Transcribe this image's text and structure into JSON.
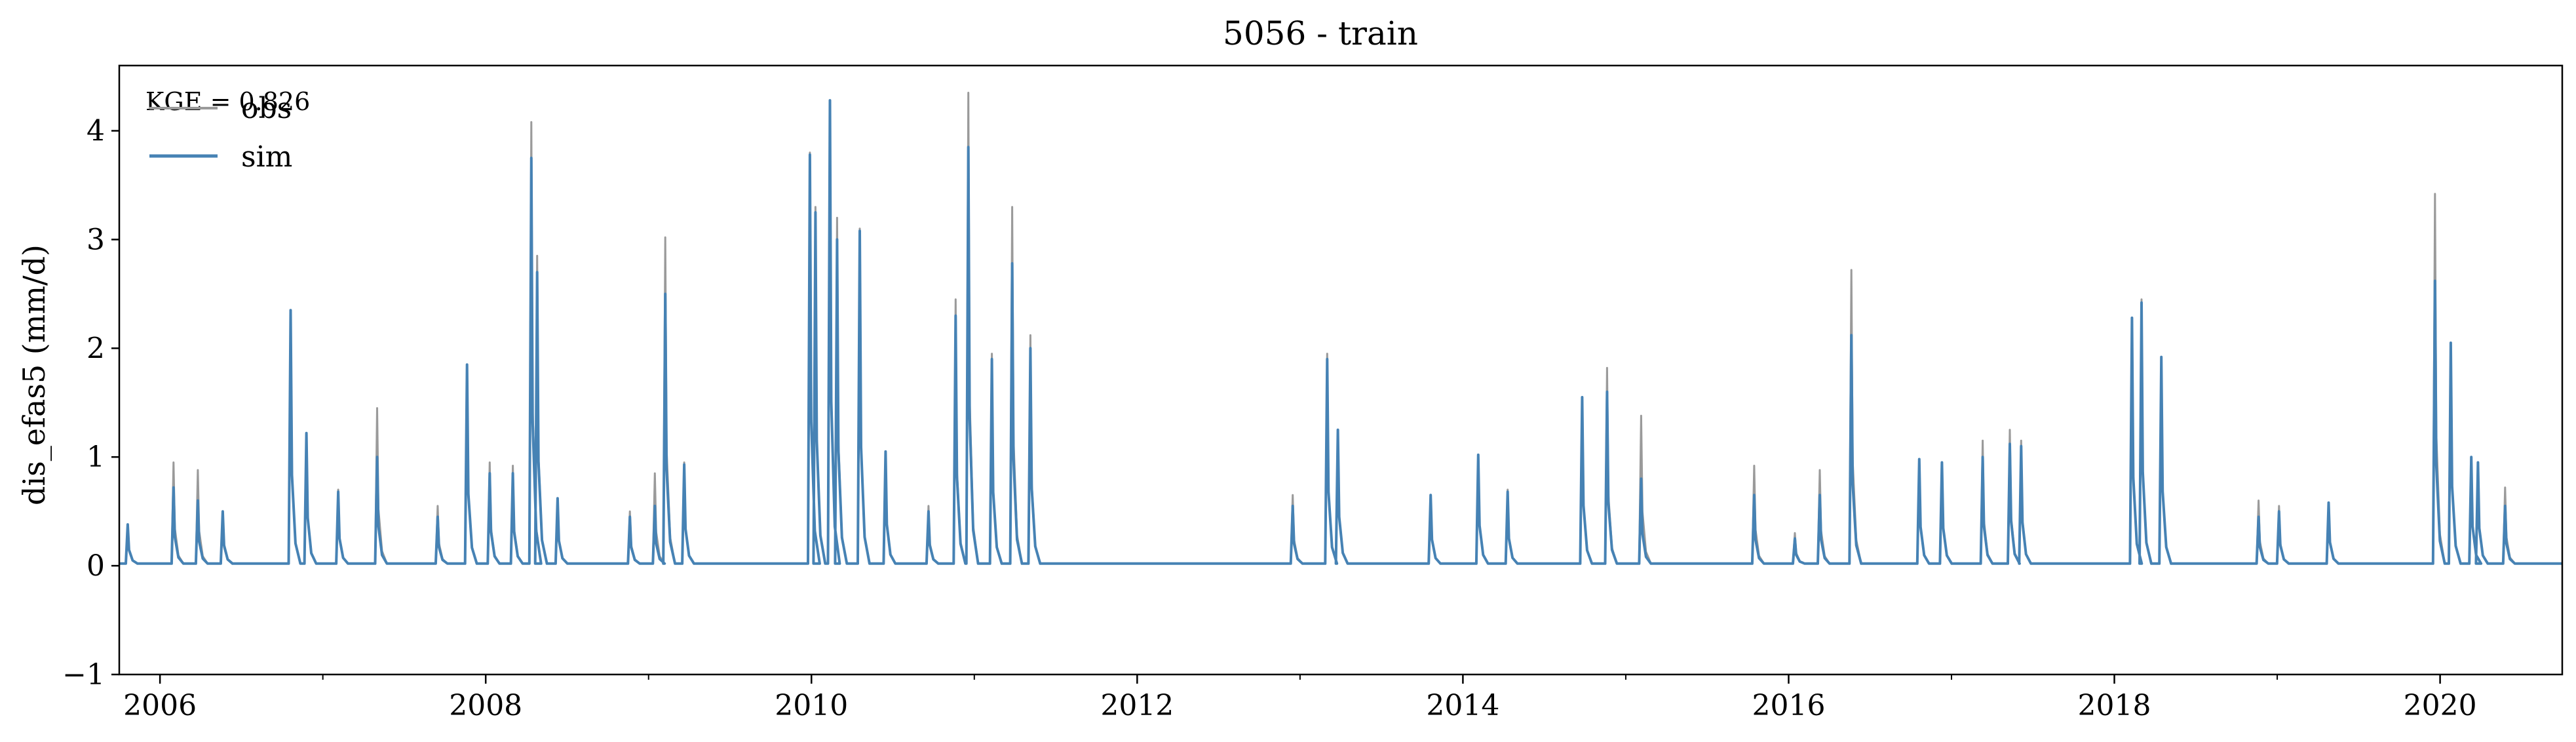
{
  "chart_data": {
    "type": "line",
    "title": "5056 - train",
    "xlabel": "",
    "ylabel": "dis_efas5 (mm/d)",
    "xlim": [
      "2005-10",
      "2020-10"
    ],
    "ylim": [
      -1,
      4.6
    ],
    "x_ticks": [
      "2006",
      "2008",
      "2010",
      "2012",
      "2014",
      "2016",
      "2018",
      "2020"
    ],
    "y_ticks": [
      "−1",
      "0",
      "1",
      "2",
      "3",
      "4"
    ],
    "grid": false,
    "legend_position": "top-left",
    "annotation": "KGE = 0.826",
    "baseline": 0.02,
    "series": [
      {
        "name": "obs",
        "color": "#9a9a9a",
        "peaks": [
          [
            "2005-10-20",
            0.35
          ],
          [
            "2006-02-01",
            0.95
          ],
          [
            "2006-03-25",
            0.88
          ],
          [
            "2006-05-20",
            0.45
          ],
          [
            "2006-10-20",
            2.3
          ],
          [
            "2006-11-25",
            1.2
          ],
          [
            "2007-02-05",
            0.7
          ],
          [
            "2007-05-01",
            1.45
          ],
          [
            "2007-09-15",
            0.55
          ],
          [
            "2007-11-20",
            1.85
          ],
          [
            "2008-01-10",
            0.95
          ],
          [
            "2008-03-01",
            0.92
          ],
          [
            "2008-04-12",
            4.08
          ],
          [
            "2008-04-25",
            2.85
          ],
          [
            "2008-06-10",
            0.6
          ],
          [
            "2008-11-20",
            0.5
          ],
          [
            "2009-01-15",
            0.85
          ],
          [
            "2009-02-08",
            3.02
          ],
          [
            "2009-03-20",
            0.95
          ],
          [
            "2009-12-28",
            3.8
          ],
          [
            "2010-01-10",
            3.3
          ],
          [
            "2010-02-12",
            4.2
          ],
          [
            "2010-02-28",
            3.2
          ],
          [
            "2010-04-18",
            3.1
          ],
          [
            "2010-06-15",
            1.05
          ],
          [
            "2010-09-20",
            0.55
          ],
          [
            "2010-11-20",
            2.45
          ],
          [
            "2010-12-18",
            4.35
          ],
          [
            "2011-02-10",
            1.95
          ],
          [
            "2011-03-25",
            3.3
          ],
          [
            "2011-05-05",
            2.12
          ],
          [
            "2012-12-15",
            0.65
          ],
          [
            "2013-03-01",
            1.95
          ],
          [
            "2013-03-25",
            1.25
          ],
          [
            "2013-10-20",
            0.65
          ],
          [
            "2014-02-05",
            1.0
          ],
          [
            "2014-04-10",
            0.7
          ],
          [
            "2014-09-25",
            1.55
          ],
          [
            "2014-11-20",
            1.82
          ],
          [
            "2015-02-05",
            1.38
          ],
          [
            "2015-10-15",
            0.92
          ],
          [
            "2016-01-15",
            0.3
          ],
          [
            "2016-03-10",
            0.88
          ],
          [
            "2016-05-20",
            2.72
          ],
          [
            "2016-10-20",
            0.95
          ],
          [
            "2016-12-10",
            0.95
          ],
          [
            "2017-03-10",
            1.15
          ],
          [
            "2017-05-10",
            1.25
          ],
          [
            "2017-06-05",
            1.15
          ],
          [
            "2018-02-10",
            2.25
          ],
          [
            "2018-03-01",
            2.45
          ],
          [
            "2018-04-15",
            1.9
          ],
          [
            "2018-11-20",
            0.6
          ],
          [
            "2019-01-05",
            0.55
          ],
          [
            "2019-04-25",
            0.55
          ],
          [
            "2019-12-20",
            3.42
          ],
          [
            "2020-01-25",
            2.05
          ],
          [
            "2020-03-10",
            1.0
          ],
          [
            "2020-03-25",
            0.95
          ],
          [
            "2020-05-25",
            0.72
          ]
        ]
      },
      {
        "name": "sim",
        "color": "#4682b4",
        "peaks": [
          [
            "2005-10-20",
            0.38
          ],
          [
            "2006-02-01",
            0.72
          ],
          [
            "2006-03-25",
            0.6
          ],
          [
            "2006-05-20",
            0.5
          ],
          [
            "2006-10-20",
            2.35
          ],
          [
            "2006-11-25",
            1.22
          ],
          [
            "2007-02-05",
            0.68
          ],
          [
            "2007-05-01",
            1.0
          ],
          [
            "2007-09-15",
            0.45
          ],
          [
            "2007-11-20",
            1.85
          ],
          [
            "2008-01-10",
            0.85
          ],
          [
            "2008-03-01",
            0.85
          ],
          [
            "2008-04-12",
            3.75
          ],
          [
            "2008-04-25",
            2.7
          ],
          [
            "2008-06-10",
            0.62
          ],
          [
            "2008-11-20",
            0.45
          ],
          [
            "2009-01-15",
            0.55
          ],
          [
            "2009-02-08",
            2.5
          ],
          [
            "2009-03-20",
            0.93
          ],
          [
            "2009-12-28",
            3.78
          ],
          [
            "2010-01-10",
            3.25
          ],
          [
            "2010-02-12",
            4.28
          ],
          [
            "2010-02-28",
            3.0
          ],
          [
            "2010-04-18",
            3.08
          ],
          [
            "2010-06-15",
            1.05
          ],
          [
            "2010-09-20",
            0.5
          ],
          [
            "2010-11-20",
            2.3
          ],
          [
            "2010-12-18",
            3.85
          ],
          [
            "2011-02-10",
            1.9
          ],
          [
            "2011-03-25",
            2.78
          ],
          [
            "2011-05-05",
            2.0
          ],
          [
            "2012-12-15",
            0.55
          ],
          [
            "2013-03-01",
            1.9
          ],
          [
            "2013-03-25",
            1.25
          ],
          [
            "2013-10-20",
            0.65
          ],
          [
            "2014-02-05",
            1.02
          ],
          [
            "2014-04-10",
            0.68
          ],
          [
            "2014-09-25",
            1.55
          ],
          [
            "2014-11-20",
            1.6
          ],
          [
            "2015-02-05",
            0.8
          ],
          [
            "2015-10-15",
            0.65
          ],
          [
            "2016-01-15",
            0.25
          ],
          [
            "2016-03-10",
            0.65
          ],
          [
            "2016-05-20",
            2.12
          ],
          [
            "2016-10-20",
            0.98
          ],
          [
            "2016-12-10",
            0.95
          ],
          [
            "2017-03-10",
            1.0
          ],
          [
            "2017-05-10",
            1.12
          ],
          [
            "2017-06-05",
            1.1
          ],
          [
            "2018-02-10",
            2.28
          ],
          [
            "2018-03-01",
            2.42
          ],
          [
            "2018-04-15",
            1.92
          ],
          [
            "2018-11-20",
            0.45
          ],
          [
            "2019-01-05",
            0.5
          ],
          [
            "2019-04-25",
            0.58
          ],
          [
            "2019-12-20",
            2.62
          ],
          [
            "2020-01-25",
            2.05
          ],
          [
            "2020-03-10",
            1.0
          ],
          [
            "2020-03-25",
            0.95
          ],
          [
            "2020-05-25",
            0.55
          ]
        ]
      }
    ]
  }
}
